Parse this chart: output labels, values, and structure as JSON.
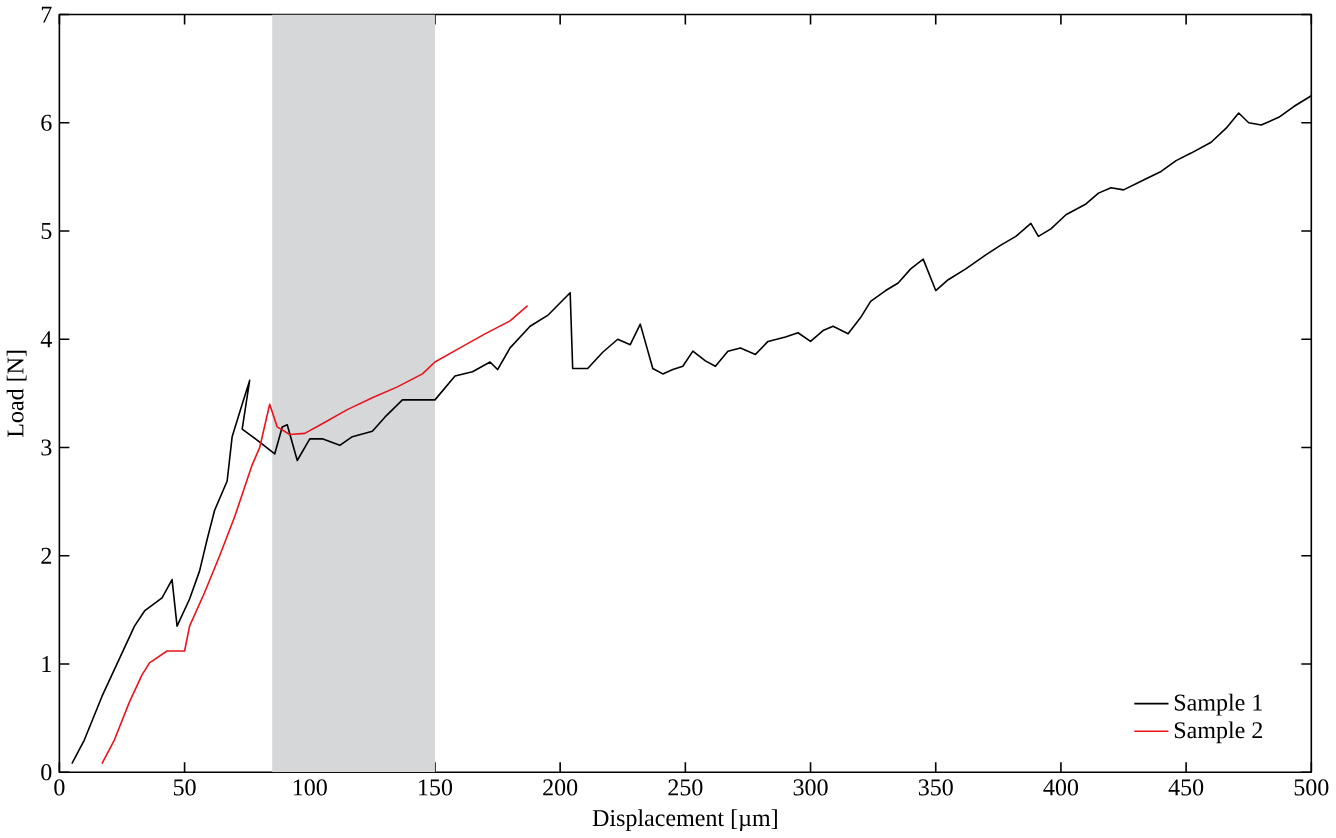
{
  "chart_data": {
    "type": "line",
    "xlabel": "Displacement [µm]",
    "ylabel": "Load [N]",
    "xlim": [
      0,
      500
    ],
    "ylim": [
      0,
      7
    ],
    "xticks": [
      0,
      50,
      100,
      150,
      200,
      250,
      300,
      350,
      400,
      450,
      500
    ],
    "yticks": [
      0,
      1,
      2,
      3,
      4,
      5,
      6,
      7
    ],
    "legend": "bottom right",
    "grid": false,
    "marker": "none",
    "line_style": "solid",
    "bands": [
      {
        "axis": "x",
        "from": 85,
        "to": 150,
        "color": "#d6d7d9"
      }
    ],
    "series": [
      {
        "name": "Sample 1",
        "color": "#000000",
        "x": [
          5,
          10,
          17,
          25,
          30,
          34,
          41,
          45,
          47,
          52,
          56,
          59,
          62,
          67,
          69,
          73,
          76,
          73,
          80,
          86,
          89,
          91,
          95,
          100,
          105,
          112,
          117,
          125,
          130,
          137,
          150,
          158,
          165,
          172,
          175,
          180,
          188,
          195,
          204,
          205,
          211,
          217,
          223,
          228,
          232,
          237,
          241,
          245,
          249,
          253,
          258,
          262,
          267,
          272,
          278,
          283,
          290,
          295,
          300,
          305,
          309,
          315,
          320,
          324,
          330,
          335,
          340,
          345,
          350,
          355,
          362,
          370,
          376,
          382,
          388,
          391,
          396,
          402,
          410,
          415,
          420,
          425,
          432,
          440,
          446,
          452,
          460,
          466,
          471,
          475,
          480,
          487,
          493,
          500
        ],
        "values": [
          0.08,
          0.3,
          0.7,
          1.1,
          1.35,
          1.49,
          1.61,
          1.78,
          1.35,
          1.6,
          1.86,
          2.15,
          2.42,
          2.69,
          3.1,
          3.4,
          3.62,
          3.17,
          3.05,
          2.94,
          3.19,
          3.21,
          2.88,
          3.08,
          3.08,
          3.02,
          3.1,
          3.15,
          3.28,
          3.44,
          3.44,
          3.66,
          3.7,
          3.79,
          3.72,
          3.92,
          4.12,
          4.22,
          4.43,
          3.73,
          3.73,
          3.88,
          4.0,
          3.95,
          4.14,
          3.73,
          3.68,
          3.72,
          3.75,
          3.89,
          3.8,
          3.75,
          3.89,
          3.92,
          3.86,
          3.98,
          4.02,
          4.06,
          3.98,
          4.08,
          4.12,
          4.05,
          4.2,
          4.35,
          4.45,
          4.52,
          4.65,
          4.74,
          4.45,
          4.55,
          4.65,
          4.78,
          4.87,
          4.95,
          5.07,
          4.95,
          5.02,
          5.15,
          5.25,
          5.35,
          5.4,
          5.38,
          5.46,
          5.55,
          5.65,
          5.72,
          5.82,
          5.95,
          6.09,
          6.0,
          5.98,
          6.05,
          6.15,
          6.25
        ]
      },
      {
        "name": "Sample 2",
        "color": "#e8141c",
        "x": [
          17,
          22,
          28,
          33,
          36,
          43,
          50,
          52,
          58,
          64,
          70,
          77,
          80,
          84,
          87,
          92,
          98,
          105,
          115,
          125,
          135,
          145,
          150,
          160,
          170,
          180,
          187
        ],
        "values": [
          0.08,
          0.3,
          0.65,
          0.9,
          1.01,
          1.12,
          1.12,
          1.35,
          1.66,
          2.0,
          2.36,
          2.84,
          3.0,
          3.4,
          3.19,
          3.12,
          3.13,
          3.22,
          3.35,
          3.46,
          3.56,
          3.68,
          3.79,
          3.92,
          4.05,
          4.17,
          4.31
        ]
      }
    ]
  }
}
